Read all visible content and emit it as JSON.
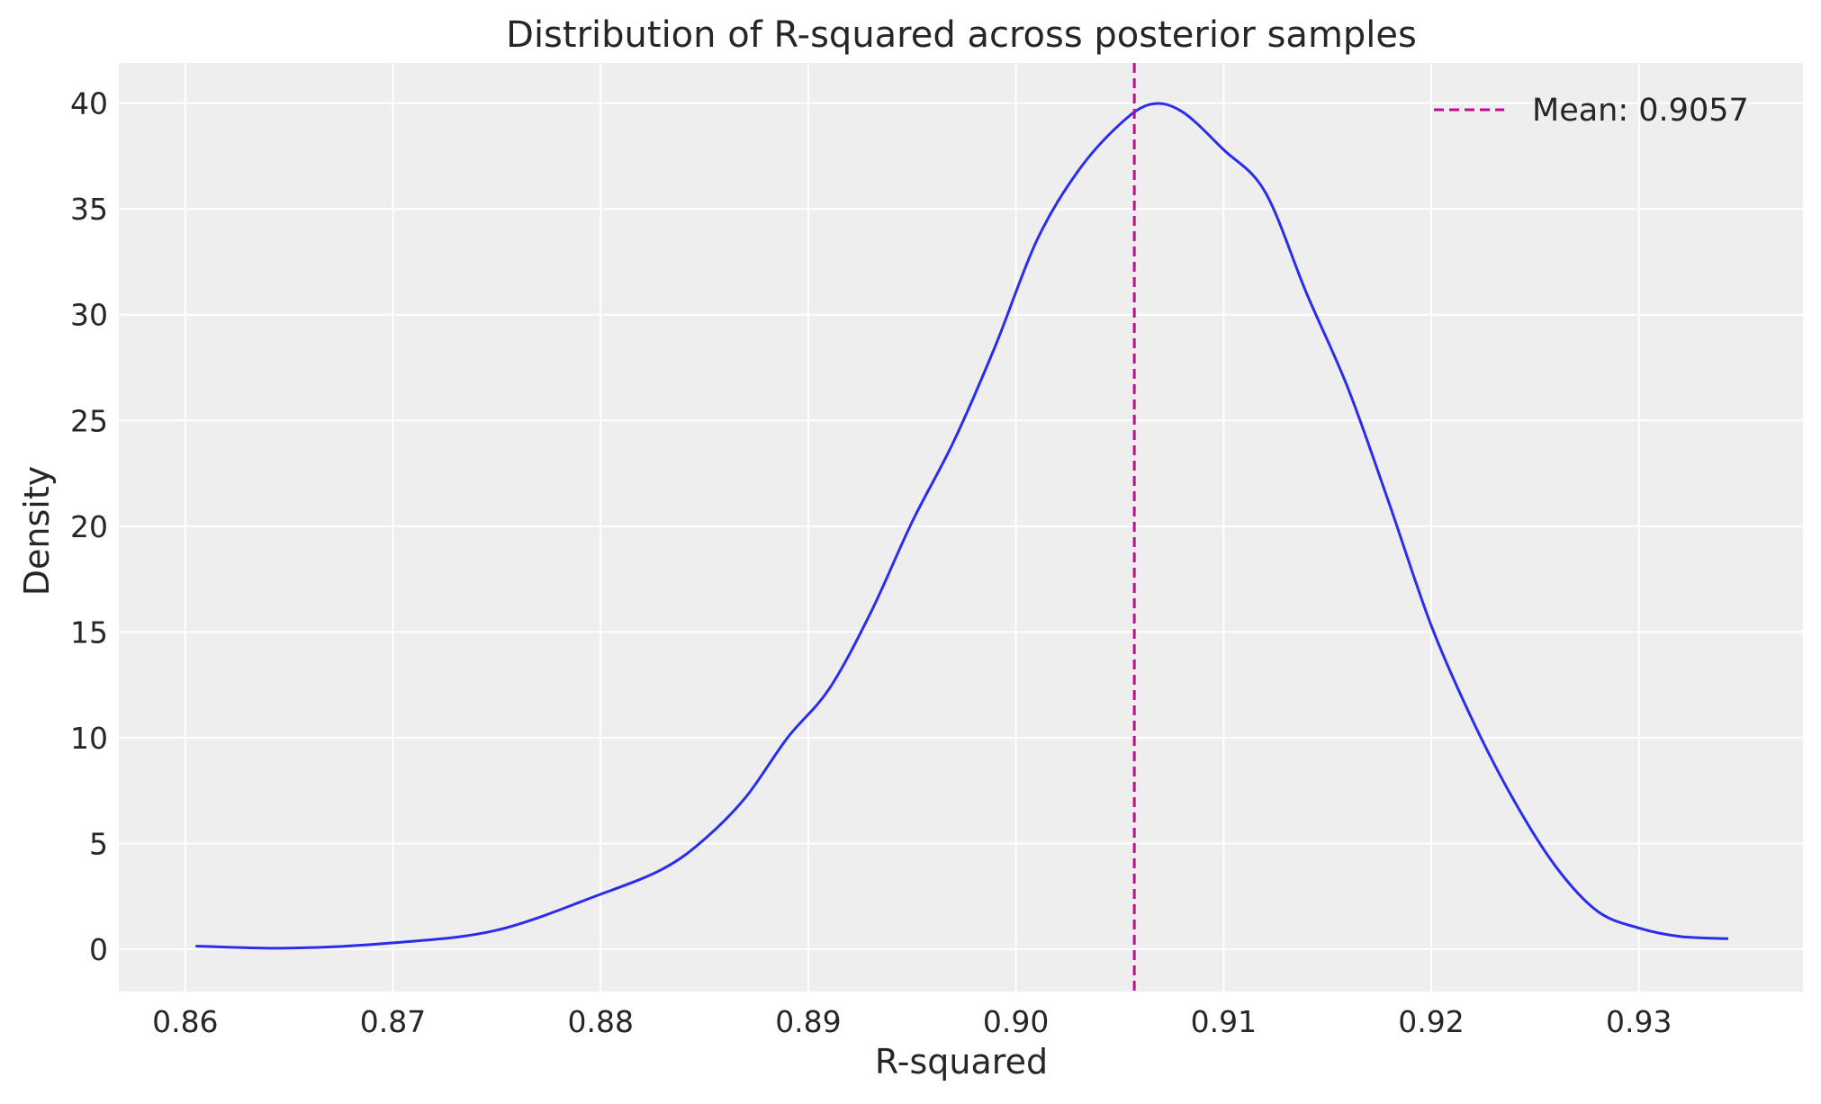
{
  "chart_data": {
    "type": "line",
    "title": "Distribution of R-squared across posterior samples",
    "xlabel": "R-squared",
    "ylabel": "Density",
    "xlim": [
      0.8568,
      0.9379
    ],
    "ylim": [
      -2,
      41.9
    ],
    "xticks": [
      0.86,
      0.87,
      0.88,
      0.89,
      0.9,
      0.91,
      0.92,
      0.93
    ],
    "xtick_labels": [
      "0.86",
      "0.87",
      "0.88",
      "0.89",
      "0.90",
      "0.91",
      "0.92",
      "0.93"
    ],
    "yticks": [
      0,
      5,
      10,
      15,
      20,
      25,
      30,
      35,
      40
    ],
    "ytick_labels": [
      "0",
      "5",
      "10",
      "15",
      "20",
      "25",
      "30",
      "35",
      "40"
    ],
    "grid": true,
    "legend_placement": "top-right",
    "series": [
      {
        "color": "#2a2eec",
        "x": [
          0.8605,
          0.865,
          0.87,
          0.875,
          0.88,
          0.883,
          0.885,
          0.887,
          0.889,
          0.891,
          0.893,
          0.895,
          0.897,
          0.899,
          0.901,
          0.903,
          0.905,
          0.9065,
          0.908,
          0.91,
          0.912,
          0.914,
          0.916,
          0.918,
          0.92,
          0.922,
          0.924,
          0.926,
          0.928,
          0.93,
          0.932,
          0.9343
        ],
        "y": [
          0.15,
          0.05,
          0.3,
          0.9,
          2.6,
          3.8,
          5.2,
          7.2,
          10,
          12.3,
          15.9,
          20.2,
          24,
          28.5,
          33.5,
          36.8,
          39.0,
          39.95,
          39.6,
          37.8,
          35.8,
          31,
          26.5,
          21,
          15.3,
          10.8,
          7,
          3.9,
          1.8,
          1.0,
          0.6,
          0.5
        ]
      }
    ],
    "annotations": [
      {
        "type": "vline",
        "x": 0.9057,
        "style": "dashed",
        "color": "#c10c90",
        "label": "Mean: 0.9057"
      }
    ],
    "background": "#eeeeee"
  }
}
